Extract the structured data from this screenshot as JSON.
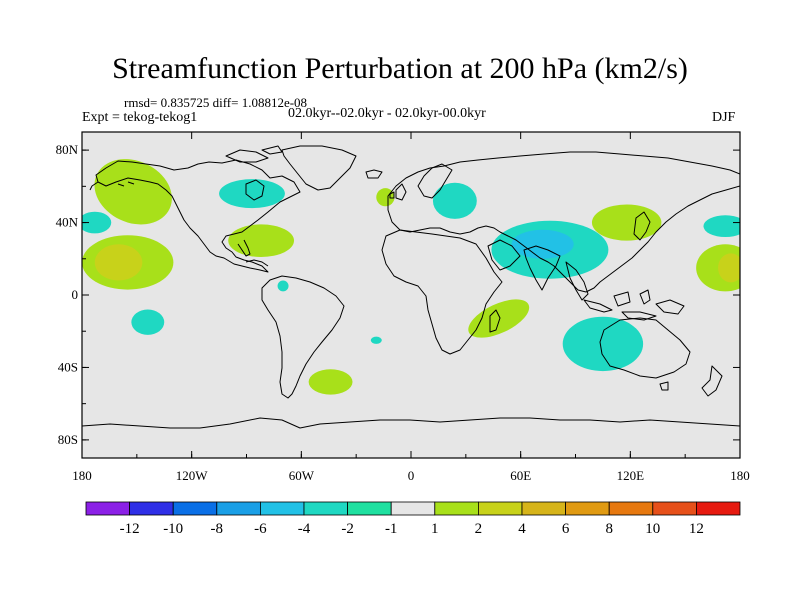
{
  "header": {
    "title": "Streamfunction Perturbation at 200 hPa (km2/s)",
    "stats": "rmsd= 0.835725 diff= 1.08812e-08",
    "expt": "Expt = tekog-tekog1",
    "period": "02.0kyr--02.0kyr - 02.0kyr-00.0kyr",
    "season": "DJF"
  },
  "map": {
    "background_color": "#e6e6e6",
    "lon_range": [
      -180,
      180
    ],
    "lat_range": [
      -90,
      90
    ],
    "x_ticks": [
      {
        "lon": -180,
        "label": "180"
      },
      {
        "lon": -120,
        "label": "120W"
      },
      {
        "lon": -60,
        "label": "60W"
      },
      {
        "lon": 0,
        "label": "0"
      },
      {
        "lon": 60,
        "label": "60E"
      },
      {
        "lon": 120,
        "label": "120E"
      },
      {
        "lon": 180,
        "label": "180"
      }
    ],
    "y_ticks": [
      {
        "lat": 80,
        "label": "80N"
      },
      {
        "lat": 40,
        "label": "40N"
      },
      {
        "lat": 0,
        "label": "0"
      },
      {
        "lat": -40,
        "label": "40S"
      },
      {
        "lat": -80,
        "label": "80S"
      }
    ],
    "anomalies": [
      {
        "name": "north-pacific-positive",
        "lon": -152,
        "lat": 57,
        "rlon": 22,
        "rlat": 17,
        "rot": 25,
        "level": 2
      },
      {
        "name": "canada-negative",
        "lon": -87,
        "lat": 56,
        "rlon": 18,
        "rlat": 8,
        "rot": 0,
        "level": -2
      },
      {
        "name": "west-pacific-negative",
        "lon": -173,
        "lat": 40,
        "rlon": 9,
        "rlat": 6,
        "rot": 0,
        "level": -2
      },
      {
        "name": "central-pacific-positive",
        "lon": -155,
        "lat": 18,
        "rlon": 25,
        "rlat": 15,
        "rot": 0,
        "level": 2
      },
      {
        "name": "central-pacific-core",
        "lon": -160,
        "lat": 18,
        "rlon": 13,
        "rlat": 10,
        "rot": 0,
        "level": 4
      },
      {
        "name": "gulf-positive",
        "lon": -82,
        "lat": 30,
        "rlon": 18,
        "rlat": 9,
        "rot": 0,
        "level": 2
      },
      {
        "name": "tropical-pacific-negative",
        "lon": -144,
        "lat": -15,
        "rlon": 9,
        "rlat": 7,
        "rot": 0,
        "level": -2
      },
      {
        "name": "south-atlantic-positive",
        "lon": -44,
        "lat": -48,
        "rlon": 12,
        "rlat": 7,
        "rot": 0,
        "level": 2
      },
      {
        "name": "mid-atlantic-positive",
        "lon": -14,
        "lat": 54,
        "rlon": 5,
        "rlat": 5,
        "rot": 0,
        "level": 2
      },
      {
        "name": "europe-negative",
        "lon": 24,
        "lat": 52,
        "rlon": 12,
        "rlat": 10,
        "rot": 0,
        "level": -2
      },
      {
        "name": "asia-negative",
        "lon": 76,
        "lat": 25,
        "rlon": 32,
        "rlat": 16,
        "rot": 0,
        "level": -2
      },
      {
        "name": "asia-core",
        "lon": 72,
        "lat": 28,
        "rlon": 17,
        "rlat": 8,
        "rot": 0,
        "level": -4
      },
      {
        "name": "east-asia-positive",
        "lon": 118,
        "lat": 40,
        "rlon": 19,
        "rlat": 10,
        "rot": 0,
        "level": 2
      },
      {
        "name": "east-africa-positive",
        "lon": 48,
        "lat": -13,
        "rlon": 18,
        "rlat": 8,
        "rot": -25,
        "level": 2
      },
      {
        "name": "australia-negative",
        "lon": 105,
        "lat": -27,
        "rlon": 22,
        "rlat": 15,
        "rot": 0,
        "level": -2
      },
      {
        "name": "dateline-positive",
        "lon": 172,
        "lat": 15,
        "rlon": 16,
        "rlat": 13,
        "rot": 0,
        "level": 2
      },
      {
        "name": "dateline-core",
        "lon": 175,
        "lat": 15,
        "rlon": 7,
        "rlat": 8,
        "rot": 0,
        "level": 4
      },
      {
        "name": "northeast-pacific-negative",
        "lon": 172,
        "lat": 38,
        "rlon": 12,
        "rlat": 6,
        "rot": 0,
        "level": -2
      },
      {
        "name": "south-atlantic-blip",
        "lon": -19,
        "lat": -25,
        "rlon": 3,
        "rlat": 2,
        "rot": 0,
        "level": -2
      },
      {
        "name": "amazon-blip",
        "lon": -70,
        "lat": 5,
        "rlon": 3,
        "rlat": 3,
        "rot": 0,
        "level": -2
      }
    ]
  },
  "colorbar": {
    "colors": [
      "#8b20e6",
      "#2f2fe6",
      "#0a6fe6",
      "#1a9fe6",
      "#22c1e6",
      "#1fd8c2",
      "#1fe0a0",
      "#e6e6e6",
      "#a8e01a",
      "#c8d21a",
      "#d6b41a",
      "#e09a12",
      "#e6780f",
      "#e6501a",
      "#e61a10"
    ],
    "labels": [
      "-12",
      "-10",
      "-8",
      "-6",
      "-4",
      "-2",
      "-1",
      "1",
      "2",
      "4",
      "6",
      "8",
      "10",
      "12"
    ]
  }
}
